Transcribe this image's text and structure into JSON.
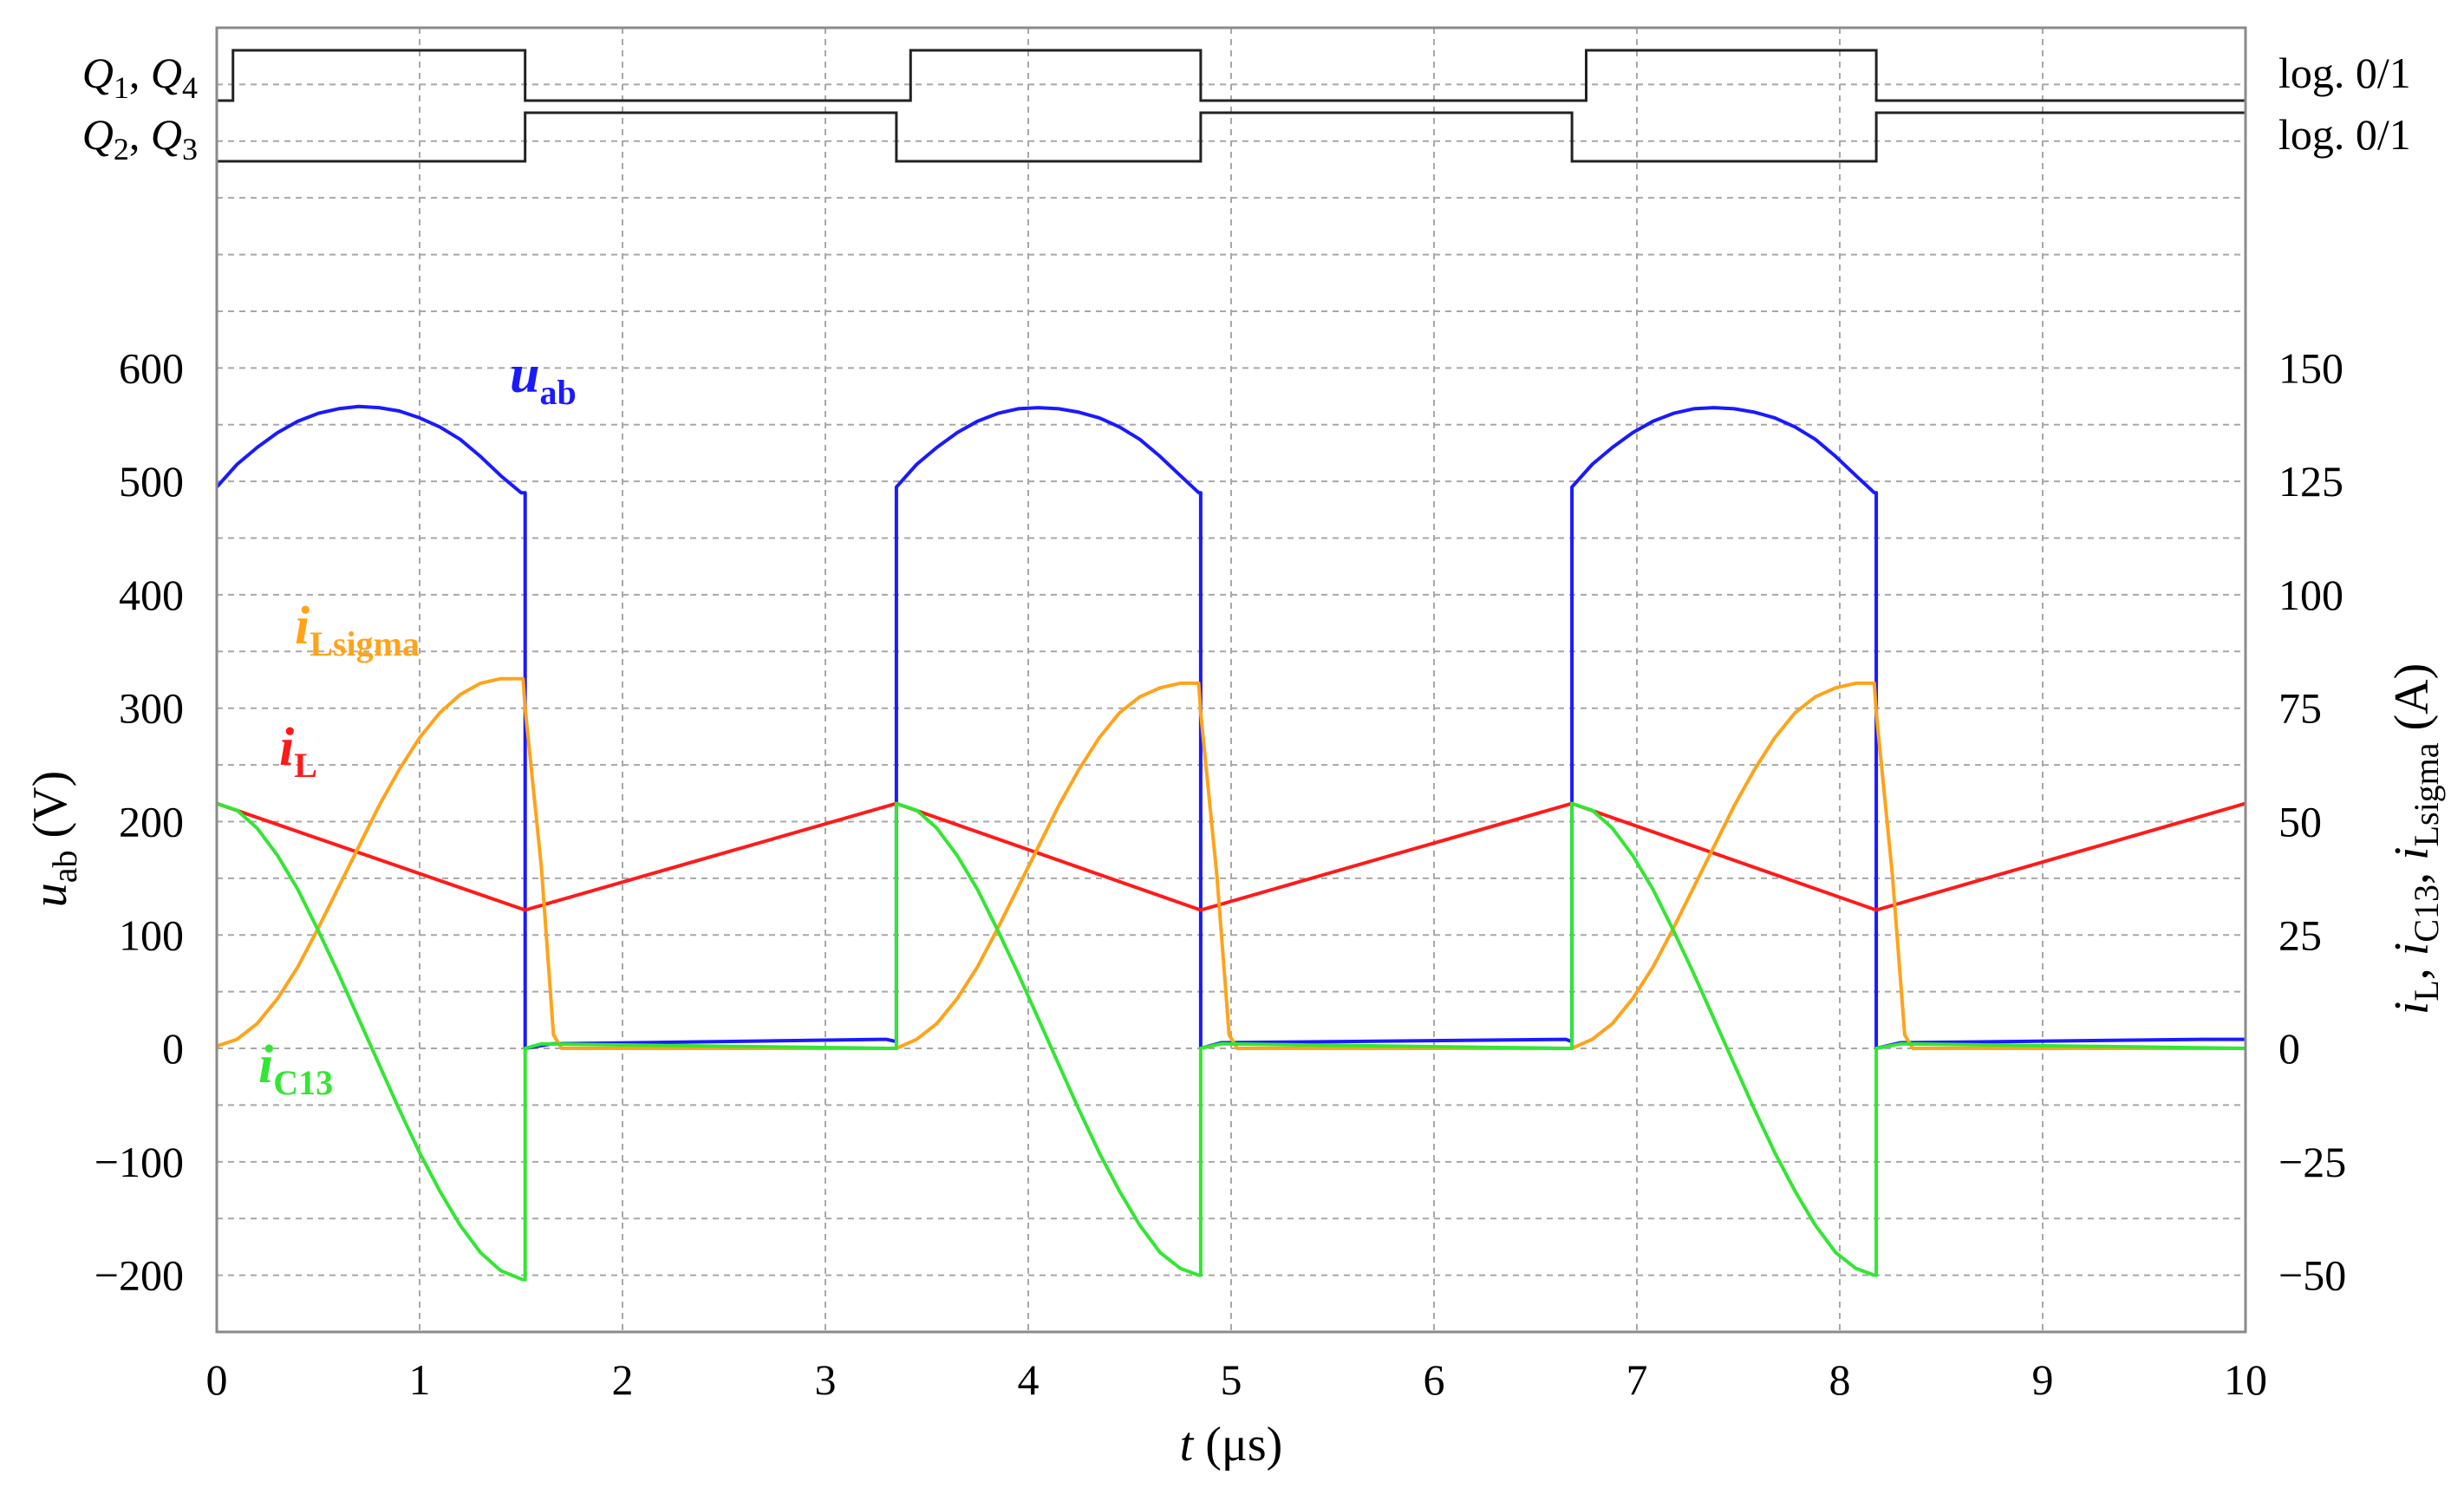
{
  "chart_data": {
    "type": "line",
    "title": "",
    "x_axis": {
      "label_var": "t",
      "label_unit": "(μs)",
      "range": [
        0,
        10
      ],
      "ticks": [
        "0",
        "1",
        "2",
        "3",
        "4",
        "5",
        "6",
        "7",
        "8",
        "9",
        "10"
      ]
    },
    "y_left": {
      "label_var": "u",
      "label_sub": "ab",
      "label_unit": "(V)",
      "range": [
        -250,
        900
      ],
      "ticks": [
        {
          "v": -200,
          "t": "−200"
        },
        {
          "v": -100,
          "t": "−100"
        },
        {
          "v": 0,
          "t": "0"
        },
        {
          "v": 100,
          "t": "100"
        },
        {
          "v": 200,
          "t": "200"
        },
        {
          "v": 300,
          "t": "300"
        },
        {
          "v": 400,
          "t": "400"
        },
        {
          "v": 500,
          "t": "500"
        },
        {
          "v": 600,
          "t": "600"
        }
      ]
    },
    "y_right": {
      "label_parts": [
        {
          "var": "i",
          "sub": "L",
          "sep": ", "
        },
        {
          "var": "i",
          "sub": "C13",
          "sep": ", "
        },
        {
          "var": "i",
          "sub": "Lsigma",
          "sep": " "
        }
      ],
      "label_unit": "(A)",
      "range": [
        -62.5,
        225
      ],
      "ticks": [
        {
          "v": -50,
          "t": "−50"
        },
        {
          "v": -25,
          "t": "−25"
        },
        {
          "v": 0,
          "t": "0"
        },
        {
          "v": 25,
          "t": "25"
        },
        {
          "v": 50,
          "t": "50"
        },
        {
          "v": 75,
          "t": "75"
        },
        {
          "v": 100,
          "t": "100"
        },
        {
          "v": 125,
          "t": "125"
        },
        {
          "v": 150,
          "t": "150"
        }
      ]
    },
    "grid": true,
    "gate_signals": [
      {
        "label_parts": [
          {
            "var": "Q",
            "sub": "1",
            "sep": ", "
          },
          {
            "var": "Q",
            "sub": "4",
            "sep": ""
          }
        ],
        "right_label": "log. 0/1",
        "high_intervals": [
          [
            0.08,
            1.52
          ],
          [
            3.42,
            4.85
          ],
          [
            6.75,
            8.18
          ]
        ]
      },
      {
        "label_parts": [
          {
            "var": "Q",
            "sub": "2",
            "sep": ", "
          },
          {
            "var": "Q",
            "sub": "3",
            "sep": ""
          }
        ],
        "right_label": "log. 0/1",
        "high_intervals": [
          [
            1.52,
            3.35
          ],
          [
            4.85,
            6.68
          ],
          [
            8.18,
            10
          ]
        ]
      }
    ],
    "series": [
      {
        "name_var": "u",
        "name_sub": "ab",
        "axis": "left",
        "color": "#1a1aff",
        "points": [
          [
            0,
            495
          ],
          [
            0.1,
            515
          ],
          [
            0.2,
            530
          ],
          [
            0.3,
            543
          ],
          [
            0.4,
            553
          ],
          [
            0.5,
            560
          ],
          [
            0.6,
            564
          ],
          [
            0.7,
            566
          ],
          [
            0.8,
            565
          ],
          [
            0.9,
            562
          ],
          [
            1.0,
            556
          ],
          [
            1.1,
            548
          ],
          [
            1.2,
            537
          ],
          [
            1.3,
            522
          ],
          [
            1.4,
            505
          ],
          [
            1.5,
            490
          ],
          [
            1.52,
            490
          ],
          [
            1.52,
            0
          ],
          [
            1.65,
            4
          ],
          [
            3.3,
            8
          ],
          [
            3.35,
            6
          ],
          [
            3.35,
            495
          ],
          [
            3.45,
            515
          ],
          [
            3.55,
            530
          ],
          [
            3.65,
            543
          ],
          [
            3.75,
            553
          ],
          [
            3.85,
            560
          ],
          [
            3.95,
            564
          ],
          [
            4.05,
            565
          ],
          [
            4.15,
            564
          ],
          [
            4.25,
            561
          ],
          [
            4.35,
            556
          ],
          [
            4.45,
            548
          ],
          [
            4.55,
            537
          ],
          [
            4.65,
            522
          ],
          [
            4.75,
            505
          ],
          [
            4.84,
            490
          ],
          [
            4.85,
            490
          ],
          [
            4.85,
            0
          ],
          [
            4.95,
            5
          ],
          [
            6.65,
            8
          ],
          [
            6.68,
            6
          ],
          [
            6.68,
            495
          ],
          [
            6.78,
            515
          ],
          [
            6.88,
            530
          ],
          [
            6.98,
            543
          ],
          [
            7.08,
            553
          ],
          [
            7.18,
            560
          ],
          [
            7.28,
            564
          ],
          [
            7.38,
            565
          ],
          [
            7.48,
            564
          ],
          [
            7.58,
            561
          ],
          [
            7.68,
            556
          ],
          [
            7.78,
            548
          ],
          [
            7.88,
            537
          ],
          [
            7.98,
            522
          ],
          [
            8.08,
            505
          ],
          [
            8.17,
            490
          ],
          [
            8.18,
            490
          ],
          [
            8.18,
            0
          ],
          [
            8.3,
            5
          ],
          [
            9.8,
            8
          ],
          [
            10,
            8
          ]
        ]
      },
      {
        "name_var": "i",
        "name_sub": "L",
        "axis": "right",
        "color": "#ff1a1a",
        "points": [
          [
            0,
            54
          ],
          [
            1.52,
            30.5
          ],
          [
            3.35,
            54
          ],
          [
            4.85,
            30.5
          ],
          [
            6.68,
            54
          ],
          [
            8.18,
            30.5
          ],
          [
            10,
            54
          ]
        ]
      },
      {
        "name_var": "i",
        "name_sub": "Lsigma",
        "axis": "right",
        "color": "#ffa31a",
        "points": [
          [
            0,
            0.5
          ],
          [
            0.1,
            2
          ],
          [
            0.2,
            5.5
          ],
          [
            0.3,
            11
          ],
          [
            0.4,
            18
          ],
          [
            0.5,
            26.5
          ],
          [
            0.6,
            35.5
          ],
          [
            0.7,
            44.5
          ],
          [
            0.8,
            53.5
          ],
          [
            0.9,
            61.5
          ],
          [
            1.0,
            68.5
          ],
          [
            1.1,
            74
          ],
          [
            1.2,
            78
          ],
          [
            1.3,
            80.5
          ],
          [
            1.4,
            81.5
          ],
          [
            1.51,
            81.5
          ],
          [
            1.52,
            75
          ],
          [
            1.6,
            40
          ],
          [
            1.66,
            3
          ],
          [
            1.7,
            0
          ],
          [
            3.35,
            0
          ],
          [
            3.45,
            2
          ],
          [
            3.55,
            5.5
          ],
          [
            3.65,
            11
          ],
          [
            3.75,
            18
          ],
          [
            3.85,
            26.5
          ],
          [
            3.95,
            35.5
          ],
          [
            4.05,
            44.5
          ],
          [
            4.15,
            53.5
          ],
          [
            4.25,
            61.5
          ],
          [
            4.35,
            68.5
          ],
          [
            4.45,
            74
          ],
          [
            4.55,
            77.5
          ],
          [
            4.65,
            79.5
          ],
          [
            4.75,
            80.5
          ],
          [
            4.84,
            80.5
          ],
          [
            4.85,
            74
          ],
          [
            4.93,
            38
          ],
          [
            4.99,
            3
          ],
          [
            5.03,
            0
          ],
          [
            6.68,
            0
          ],
          [
            6.78,
            2
          ],
          [
            6.88,
            5.5
          ],
          [
            6.98,
            11
          ],
          [
            7.08,
            18
          ],
          [
            7.18,
            26.5
          ],
          [
            7.28,
            35.5
          ],
          [
            7.38,
            44.5
          ],
          [
            7.48,
            53.5
          ],
          [
            7.58,
            61.5
          ],
          [
            7.68,
            68.5
          ],
          [
            7.78,
            74
          ],
          [
            7.88,
            77.5
          ],
          [
            7.98,
            79.5
          ],
          [
            8.08,
            80.5
          ],
          [
            8.17,
            80.5
          ],
          [
            8.18,
            74
          ],
          [
            8.26,
            38
          ],
          [
            8.32,
            3
          ],
          [
            8.36,
            0
          ],
          [
            10,
            0
          ]
        ]
      },
      {
        "name_var": "i",
        "name_sub": "C13",
        "axis": "right",
        "color": "#33e633",
        "points": [
          [
            0,
            54
          ],
          [
            0.1,
            52.5
          ],
          [
            0.2,
            48.5
          ],
          [
            0.3,
            42.5
          ],
          [
            0.4,
            35
          ],
          [
            0.5,
            26
          ],
          [
            0.6,
            16.5
          ],
          [
            0.7,
            6.5
          ],
          [
            0.8,
            -3.5
          ],
          [
            0.9,
            -13.5
          ],
          [
            1.0,
            -23
          ],
          [
            1.1,
            -31.5
          ],
          [
            1.2,
            -39
          ],
          [
            1.3,
            -45
          ],
          [
            1.4,
            -49
          ],
          [
            1.51,
            -51
          ],
          [
            1.52,
            -51
          ],
          [
            1.52,
            0
          ],
          [
            1.6,
            1
          ],
          [
            3.3,
            0
          ],
          [
            3.35,
            0
          ],
          [
            3.35,
            54
          ],
          [
            3.45,
            52.5
          ],
          [
            3.55,
            48.5
          ],
          [
            3.65,
            42.5
          ],
          [
            3.75,
            35
          ],
          [
            3.85,
            26
          ],
          [
            3.95,
            16.5
          ],
          [
            4.05,
            6.5
          ],
          [
            4.15,
            -3.5
          ],
          [
            4.25,
            -13.5
          ],
          [
            4.35,
            -23
          ],
          [
            4.45,
            -31.5
          ],
          [
            4.55,
            -39
          ],
          [
            4.65,
            -45
          ],
          [
            4.75,
            -48.5
          ],
          [
            4.84,
            -50
          ],
          [
            4.85,
            -50
          ],
          [
            4.85,
            0
          ],
          [
            4.95,
            1
          ],
          [
            6.65,
            0
          ],
          [
            6.68,
            0
          ],
          [
            6.68,
            54
          ],
          [
            6.78,
            52.5
          ],
          [
            6.88,
            48.5
          ],
          [
            6.98,
            42.5
          ],
          [
            7.08,
            35
          ],
          [
            7.18,
            26
          ],
          [
            7.28,
            16.5
          ],
          [
            7.38,
            6.5
          ],
          [
            7.48,
            -3.5
          ],
          [
            7.58,
            -13.5
          ],
          [
            7.68,
            -23
          ],
          [
            7.78,
            -31.5
          ],
          [
            7.88,
            -39
          ],
          [
            7.98,
            -45
          ],
          [
            8.08,
            -48.5
          ],
          [
            8.17,
            -50
          ],
          [
            8.18,
            -50
          ],
          [
            8.18,
            0
          ],
          [
            8.3,
            1
          ],
          [
            10,
            0
          ]
        ]
      }
    ]
  }
}
